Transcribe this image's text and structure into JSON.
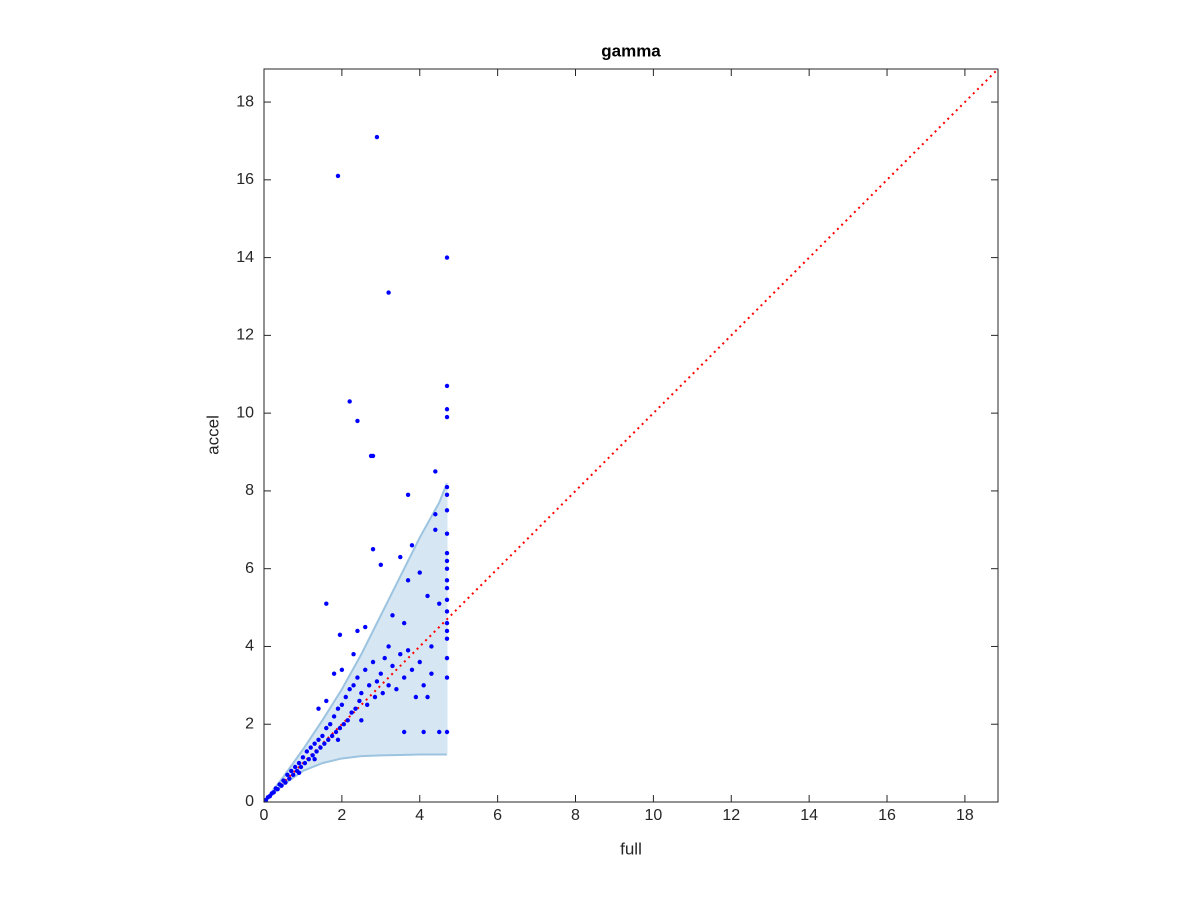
{
  "chart_data": {
    "type": "scatter",
    "title": "gamma",
    "x_label": "full",
    "y_label": "accel",
    "xlim": [
      0,
      18.85
    ],
    "ylim": [
      0,
      18.85
    ],
    "xticks": [
      0,
      2,
      4,
      6,
      8,
      10,
      12,
      14,
      16,
      18
    ],
    "yticks": [
      0,
      2,
      4,
      6,
      8,
      10,
      12,
      14,
      16,
      18
    ],
    "points": {
      "color": "#0000ff",
      "x": [
        2.9,
        1.9,
        4.7,
        3.2,
        4.7,
        2.2,
        4.7,
        4.7,
        2.4,
        2.8,
        2.75,
        4.4,
        4.7,
        4.7,
        3.7,
        4.7,
        4.4,
        4.4,
        4.7,
        3.8,
        2.8,
        4.7,
        4.7,
        3.5,
        3.0,
        4.7,
        4.0,
        4.7,
        3.7,
        4.7,
        4.2,
        1.6,
        4.5,
        4.7,
        4.7,
        3.3,
        4.7,
        3.6,
        2.4,
        1.95,
        2.6,
        4.7,
        4.7,
        4.3,
        3.2,
        4.7,
        4.7,
        4.5,
        4.1,
        3.6,
        4.7,
        4.2,
        4.3,
        0.05,
        0.1,
        0.15,
        0.2,
        0.25,
        0.3,
        0.35,
        0.4,
        0.45,
        0.5,
        0.55,
        0.6,
        0.65,
        0.7,
        0.75,
        0.8,
        0.85,
        0.9,
        0.95,
        1.0,
        1.05,
        1.1,
        1.15,
        1.2,
        1.25,
        1.3,
        1.35,
        1.4,
        1.45,
        1.5,
        1.55,
        1.6,
        1.65,
        1.7,
        1.75,
        1.8,
        1.85,
        1.9,
        1.95,
        2.0,
        2.05,
        2.1,
        2.15,
        2.2,
        2.25,
        2.3,
        2.35,
        2.4,
        2.45,
        2.5,
        2.6,
        2.65,
        2.7,
        2.8,
        2.85,
        2.9,
        3.0,
        3.05,
        3.1,
        3.2,
        3.3,
        3.4,
        3.5,
        3.6,
        3.7,
        3.8,
        3.9,
        4.0,
        4.1,
        1.4,
        1.6,
        1.8,
        2.0,
        2.3,
        1.9,
        1.3,
        0.9,
        2.5
      ],
      "y": [
        17.1,
        16.1,
        14.0,
        13.1,
        10.7,
        10.3,
        10.1,
        9.9,
        9.8,
        8.9,
        8.9,
        8.5,
        8.1,
        7.9,
        7.9,
        7.5,
        7.4,
        7.0,
        6.9,
        6.6,
        6.5,
        6.4,
        6.2,
        6.3,
        6.1,
        6.0,
        5.9,
        5.7,
        5.7,
        5.5,
        5.3,
        5.1,
        5.1,
        5.2,
        4.9,
        4.8,
        4.6,
        4.6,
        4.4,
        4.3,
        4.5,
        4.4,
        4.2,
        4.0,
        4.0,
        3.7,
        1.8,
        1.8,
        1.8,
        1.8,
        3.2,
        2.7,
        3.3,
        0.05,
        0.12,
        0.15,
        0.22,
        0.25,
        0.35,
        0.33,
        0.45,
        0.42,
        0.55,
        0.5,
        0.7,
        0.6,
        0.8,
        0.7,
        0.9,
        0.8,
        1.0,
        0.9,
        1.15,
        1.0,
        1.3,
        1.1,
        1.4,
        1.2,
        1.5,
        1.3,
        1.6,
        1.4,
        1.7,
        1.5,
        1.9,
        1.6,
        2.0,
        1.7,
        2.2,
        1.8,
        2.4,
        1.9,
        2.5,
        2.0,
        2.7,
        2.1,
        2.9,
        2.3,
        3.0,
        2.4,
        3.2,
        2.6,
        2.8,
        3.4,
        2.5,
        3.0,
        3.6,
        2.7,
        3.1,
        3.3,
        2.8,
        3.7,
        3.0,
        3.5,
        2.9,
        3.8,
        3.2,
        3.9,
        3.4,
        2.7,
        3.6,
        3.0,
        2.4,
        2.6,
        3.3,
        3.4,
        3.8,
        1.6,
        1.1,
        0.75,
        2.1
      ]
    },
    "band": {
      "color": "#d6e7f3",
      "edge_color": "#9cc3e0",
      "x": [
        0,
        0.5,
        1,
        1.5,
        2,
        2.5,
        3,
        3.5,
        4,
        4.5,
        4.7
      ],
      "upper": [
        0,
        0.65,
        1.35,
        2.1,
        2.9,
        3.8,
        4.8,
        5.8,
        6.8,
        7.7,
        8.2
      ],
      "lower": [
        0,
        0.45,
        0.8,
        1.0,
        1.12,
        1.18,
        1.2,
        1.21,
        1.22,
        1.22,
        1.22
      ]
    },
    "reference_line": {
      "color": "#ff0000",
      "x": [
        0,
        18.85
      ],
      "y": [
        0,
        18.85
      ]
    }
  }
}
